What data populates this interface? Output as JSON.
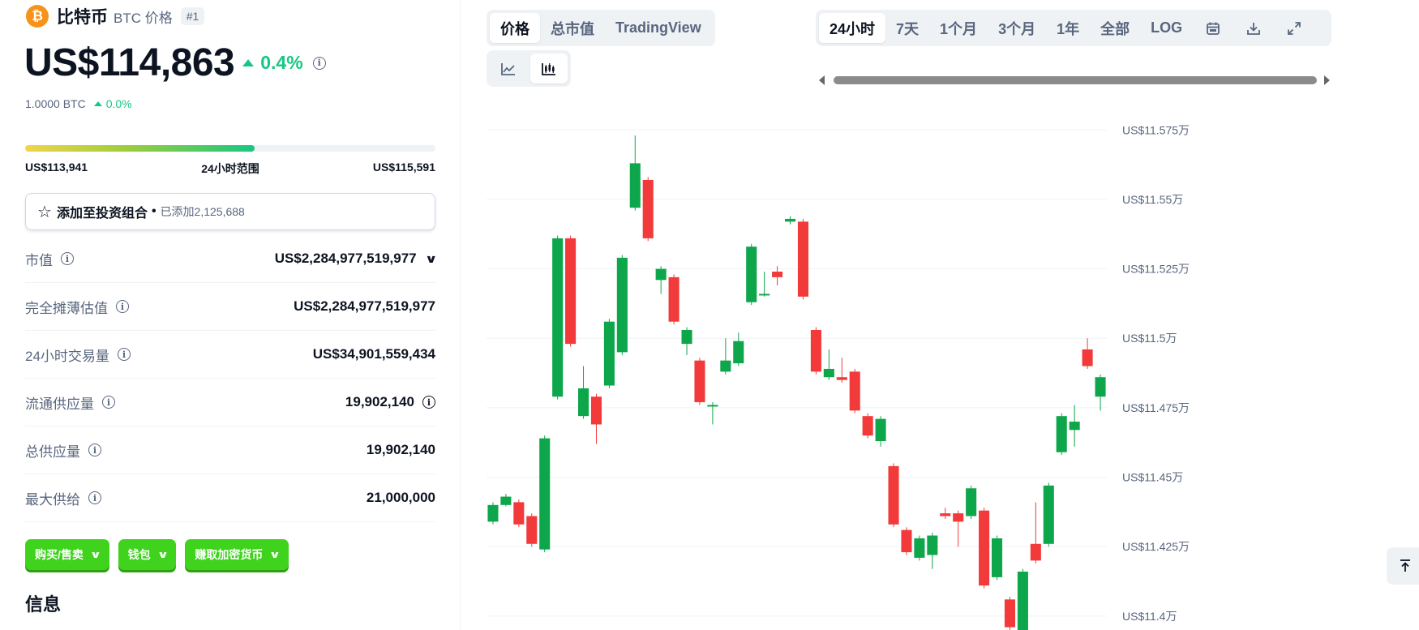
{
  "coin": {
    "logo_glyph": "₿",
    "name": "比特币",
    "symbol_label": "BTC 价格",
    "rank": "#1",
    "price": "US$114,863",
    "change": "0.4%",
    "btc_value": "1.0000 BTC",
    "btc_change": "0.0%"
  },
  "range_24h": {
    "low": "US$113,941",
    "label": "24小时范围",
    "high": "US$115,591",
    "fill_fraction": 0.56
  },
  "portfolio": {
    "label": "添加至投资组合",
    "separator": "•",
    "added": "已添加2,125,688"
  },
  "stats": [
    {
      "label": "市值",
      "value": "US$2,284,977,519,977"
    },
    {
      "label": "完全摊薄估值",
      "value": "US$2,284,977,519,977"
    },
    {
      "label": "24小时交易量",
      "value": "US$34,901,559,434"
    },
    {
      "label": "流通供应量",
      "value": "19,902,140"
    },
    {
      "label": "总供应量",
      "value": "19,902,140"
    },
    {
      "label": "最大供给",
      "value": "21,000,000"
    }
  ],
  "actions": [
    "购买/售卖",
    "钱包",
    "赚取加密货币"
  ],
  "info_heading": "信息",
  "chart_tabs": [
    "价格",
    "总市值",
    "TradingView"
  ],
  "time_ranges": [
    "24小时",
    "7天",
    "1个月",
    "3个月",
    "1年",
    "全部",
    "LOG"
  ],
  "icons": {
    "line_chart": "line-chart-icon",
    "candle_chart": "candlestick-chart-icon",
    "calendar": "calendar-icon",
    "download": "download-icon",
    "fullscreen": "fullscreen-icon",
    "back_to_top": "back-to-top-icon"
  },
  "colors": {
    "up": "#16c784",
    "candle_up": "#0ea64b",
    "candle_down": "#f23a3a",
    "accent_green": "#3fd31e",
    "bitcoin": "#f7931a"
  },
  "chart_data": {
    "type": "candlestick",
    "y_tick_labels": [
      "US$11.575万",
      "US$11.55万",
      "US$11.525万",
      "US$11.5万",
      "US$11.475万",
      "US$11.45万",
      "US$11.425万",
      "US$11.4万"
    ],
    "y_ticks": [
      115750,
      115500,
      115250,
      115000,
      114750,
      114500,
      114250,
      114000
    ],
    "ylim": [
      113950,
      115780
    ],
    "grid": true,
    "candles": [
      {
        "o": 114340,
        "c": 114400,
        "h": 114410,
        "l": 114330
      },
      {
        "o": 114400,
        "c": 114430,
        "h": 114440,
        "l": 114395
      },
      {
        "o": 114410,
        "c": 114330,
        "h": 114420,
        "l": 114320
      },
      {
        "o": 114360,
        "c": 114260,
        "h": 114370,
        "l": 114250
      },
      {
        "o": 114240,
        "c": 114640,
        "h": 114650,
        "l": 114230
      },
      {
        "o": 114790,
        "c": 115360,
        "h": 115370,
        "l": 114780
      },
      {
        "o": 115360,
        "c": 114980,
        "h": 115370,
        "l": 114970
      },
      {
        "o": 114720,
        "c": 114820,
        "h": 114900,
        "l": 114710
      },
      {
        "o": 114790,
        "c": 114690,
        "h": 114800,
        "l": 114620
      },
      {
        "o": 114830,
        "c": 115060,
        "h": 115070,
        "l": 114820
      },
      {
        "o": 114950,
        "c": 115290,
        "h": 115300,
        "l": 114940
      },
      {
        "o": 115470,
        "c": 115630,
        "h": 115730,
        "l": 115460
      },
      {
        "o": 115570,
        "c": 115360,
        "h": 115580,
        "l": 115350
      },
      {
        "o": 115210,
        "c": 115250,
        "h": 115260,
        "l": 115160
      },
      {
        "o": 115220,
        "c": 115060,
        "h": 115230,
        "l": 115050
      },
      {
        "o": 114980,
        "c": 115030,
        "h": 115040,
        "l": 114940
      },
      {
        "o": 114920,
        "c": 114770,
        "h": 114930,
        "l": 114760
      },
      {
        "o": 114760,
        "c": 114760,
        "h": 114770,
        "l": 114690
      },
      {
        "o": 114880,
        "c": 114920,
        "h": 115000,
        "l": 114870
      },
      {
        "o": 114910,
        "c": 114990,
        "h": 115020,
        "l": 114900
      },
      {
        "o": 115130,
        "c": 115330,
        "h": 115340,
        "l": 115120
      },
      {
        "o": 115160,
        "c": 115160,
        "h": 115240,
        "l": 115150
      },
      {
        "o": 115240,
        "c": 115220,
        "h": 115260,
        "l": 115190
      },
      {
        "o": 115420,
        "c": 115430,
        "h": 115440,
        "l": 115410
      },
      {
        "o": 115420,
        "c": 115150,
        "h": 115430,
        "l": 115140
      },
      {
        "o": 115030,
        "c": 114880,
        "h": 115040,
        "l": 114870
      },
      {
        "o": 114860,
        "c": 114890,
        "h": 114960,
        "l": 114850
      },
      {
        "o": 114860,
        "c": 114850,
        "h": 114930,
        "l": 114840
      },
      {
        "o": 114880,
        "c": 114740,
        "h": 114890,
        "l": 114730
      },
      {
        "o": 114720,
        "c": 114650,
        "h": 114730,
        "l": 114640
      },
      {
        "o": 114630,
        "c": 114710,
        "h": 114720,
        "l": 114610
      },
      {
        "o": 114540,
        "c": 114330,
        "h": 114550,
        "l": 114320
      },
      {
        "o": 114310,
        "c": 114230,
        "h": 114320,
        "l": 114220
      },
      {
        "o": 114210,
        "c": 114280,
        "h": 114290,
        "l": 114200
      },
      {
        "o": 114220,
        "c": 114290,
        "h": 114300,
        "l": 114170
      },
      {
        "o": 114370,
        "c": 114360,
        "h": 114390,
        "l": 114350
      },
      {
        "o": 114370,
        "c": 114340,
        "h": 114380,
        "l": 114250
      },
      {
        "o": 114360,
        "c": 114460,
        "h": 114470,
        "l": 114350
      },
      {
        "o": 114380,
        "c": 114110,
        "h": 114390,
        "l": 114100
      },
      {
        "o": 114140,
        "c": 114280,
        "h": 114290,
        "l": 114130
      },
      {
        "o": 114060,
        "c": 113960,
        "h": 114070,
        "l": 113910
      },
      {
        "o": 113930,
        "c": 114160,
        "h": 114170,
        "l": 113920
      },
      {
        "o": 114260,
        "c": 114200,
        "h": 114410,
        "l": 114190
      },
      {
        "o": 114260,
        "c": 114470,
        "h": 114480,
        "l": 114250
      },
      {
        "o": 114590,
        "c": 114720,
        "h": 114730,
        "l": 114580
      },
      {
        "o": 114670,
        "c": 114700,
        "h": 114760,
        "l": 114610
      },
      {
        "o": 114960,
        "c": 114900,
        "h": 115000,
        "l": 114890
      },
      {
        "o": 114790,
        "c": 114860,
        "h": 114870,
        "l": 114740
      }
    ]
  }
}
